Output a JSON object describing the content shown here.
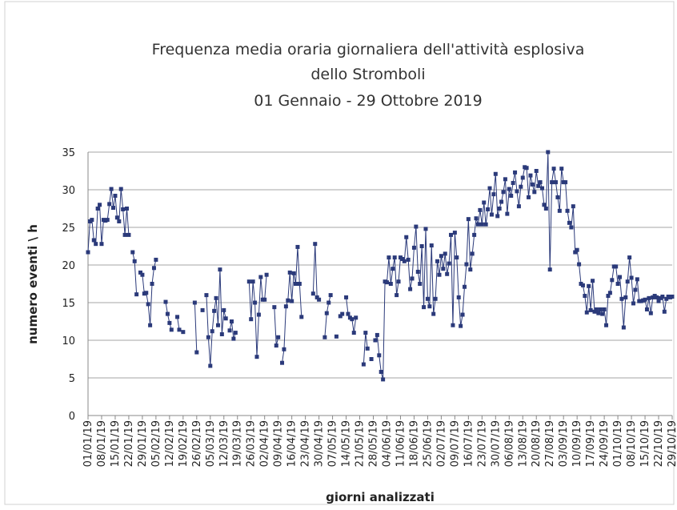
{
  "chart_data": {
    "type": "line",
    "title": [
      "Frequenza media oraria giornaliera dell'attività esplosiva",
      "dello Stromboli",
      "01 Gennaio  - 29 Ottobre 2019"
    ],
    "y_label": "numero eventi \\ h",
    "x_label": "giorni analizzati",
    "color": "#2b3a7a",
    "ylim": [
      0,
      35
    ],
    "yticks": [
      0,
      5,
      10,
      15,
      20,
      25,
      30,
      35
    ],
    "grid": true,
    "categories": [
      "01/01/19",
      null,
      null,
      null,
      null,
      null,
      null,
      "08/01/19",
      null,
      null,
      null,
      null,
      null,
      null,
      "15/01/19",
      null,
      null,
      null,
      null,
      null,
      null,
      "22/01/19",
      null,
      null,
      null,
      null,
      null,
      null,
      "29/01/19",
      null,
      null,
      null,
      null,
      null,
      null,
      "05/02/19",
      null,
      null,
      null,
      null,
      null,
      null,
      "12/02/19",
      null,
      null,
      null,
      null,
      null,
      null,
      "19/02/19",
      null,
      null,
      null,
      null,
      null,
      null,
      "26/02/19",
      null,
      null,
      null,
      null,
      null,
      null,
      "05/03/19",
      null,
      null,
      null,
      null,
      null,
      null,
      "12/03/19",
      null,
      null,
      null,
      null,
      null,
      null,
      "19/03/19",
      null,
      null,
      null,
      null,
      null,
      null,
      "26/03/19",
      null,
      null,
      null,
      null,
      null,
      null,
      "02/04/19",
      null,
      null,
      null,
      null,
      null,
      null,
      "09/04/19",
      null,
      null,
      null,
      null,
      null,
      null,
      "16/04/19",
      null,
      null,
      null,
      null,
      null,
      null,
      "23/04/19",
      null,
      null,
      null,
      null,
      null,
      null,
      "30/04/19",
      null,
      null,
      null,
      null,
      null,
      null,
      "07/05/19",
      null,
      null,
      null,
      null,
      null,
      null,
      "14/05/19",
      null,
      null,
      null,
      null,
      null,
      null,
      "21/05/19",
      null,
      null,
      null,
      null,
      null,
      null,
      "28/05/19",
      null,
      null,
      null,
      null,
      null,
      null,
      "04/06/19",
      null,
      null,
      null,
      null,
      null,
      null,
      "11/06/19",
      null,
      null,
      null,
      null,
      null,
      null,
      "18/06/19",
      null,
      null,
      null,
      null,
      null,
      null,
      "25/06/19",
      null,
      null,
      null,
      null,
      null,
      null,
      "02/07/19",
      null,
      null,
      null,
      null,
      null,
      null,
      "09/07/19",
      null,
      null,
      null,
      null,
      null,
      null,
      "16/07/19",
      null,
      null,
      null,
      null,
      null,
      null,
      "23/07/19",
      null,
      null,
      null,
      null,
      null,
      null,
      "30/07/19",
      null,
      null,
      null,
      null,
      null,
      null,
      "06/08/19",
      null,
      null,
      null,
      null,
      null,
      null,
      "13/08/19",
      null,
      null,
      null,
      null,
      null,
      null,
      "20/08/19",
      null,
      null,
      null,
      null,
      null,
      null,
      "27/08/19",
      null,
      null,
      null,
      null,
      null,
      null,
      "03/09/19",
      null,
      null,
      null,
      null,
      null,
      null,
      "10/09/19",
      null,
      null,
      null,
      null,
      null,
      null,
      "17/09/19",
      null,
      null,
      null,
      null,
      null,
      null,
      "24/09/19",
      null,
      null,
      null,
      null,
      null,
      null,
      "01/10/19",
      null,
      null,
      null,
      null,
      null,
      null,
      "08/10/19",
      null,
      null,
      null,
      null,
      null,
      null,
      "15/10/19",
      null,
      null,
      null,
      null,
      null,
      null,
      "22/10/19",
      null,
      null,
      null,
      null,
      null,
      null,
      "29/10/19"
    ],
    "values": [
      21.7,
      25.8,
      26,
      23.3,
      22.8,
      27.5,
      28,
      22.8,
      26,
      25.9,
      26,
      28.1,
      30.1,
      27.6,
      29.2,
      26.3,
      25.8,
      30.1,
      27.4,
      24,
      27.5,
      24,
      null,
      21.7,
      20.5,
      16.1,
      null,
      19,
      18.7,
      16.2,
      16.3,
      14.8,
      12,
      17.5,
      19.6,
      20.7,
      null,
      null,
      null,
      null,
      15.1,
      13.5,
      12.3,
      11.4,
      null,
      null,
      13.1,
      11.4,
      null,
      11.1,
      null,
      null,
      null,
      null,
      null,
      15,
      8.4,
      null,
      null,
      14,
      null,
      16,
      10.4,
      6.6,
      11.2,
      13.9,
      15.6,
      12,
      19.4,
      10.8,
      14,
      12.9,
      null,
      11.3,
      12.5,
      10.2,
      11,
      null,
      null,
      null,
      null,
      null,
      null,
      17.8,
      12.8,
      17.8,
      15,
      7.8,
      13.4,
      18.4,
      15.4,
      15.4,
      18.7,
      null,
      null,
      null,
      14.4,
      9.3,
      10.4,
      null,
      7,
      8.8,
      14.5,
      15.3,
      19,
      15.2,
      18.9,
      17.5,
      22.4,
      17.5,
      13.1,
      null,
      null,
      null,
      null,
      null,
      16.2,
      22.8,
      15.7,
      15.4,
      null,
      null,
      10.4,
      13.6,
      15,
      16,
      null,
      null,
      10.5,
      null,
      13.2,
      13.5,
      null,
      15.7,
      13.5,
      13,
      12.8,
      11,
      13,
      null,
      null,
      null,
      6.8,
      11,
      8.9,
      null,
      7.5,
      null,
      10,
      10.7,
      8,
      5.8,
      4.8,
      17.8,
      17.7,
      21,
      17.5,
      19.5,
      21,
      16,
      17.8,
      21,
      20.8,
      20.5,
      23.7,
      20.7,
      16.8,
      18.2,
      22.3,
      25.1,
      19.1,
      17.5,
      22.5,
      14.4,
      24.8,
      15.5,
      14.5,
      22.6,
      13.5,
      15.5,
      20.5,
      18.7,
      21.2,
      19.5,
      21.5,
      18.8,
      20.2,
      24,
      12,
      24.3,
      21,
      15.7,
      11.9,
      13.4,
      17.1,
      20.1,
      26.1,
      19.4,
      21.5,
      24,
      26.2,
      25.4,
      27.3,
      25.4,
      28.3,
      25.4,
      27.4,
      30.2,
      26.7,
      29.4,
      32.1,
      26.5,
      27.5,
      28.4,
      29.7,
      31.4,
      26.8,
      30.1,
      29.2,
      30.9,
      32.3,
      29.8,
      27.8,
      30.4,
      31.6,
      33,
      32.9,
      29,
      31.9,
      30.7,
      29.7,
      32.5,
      30.5,
      31,
      30.2,
      28,
      27.5,
      35,
      19.4,
      31,
      32.8,
      31,
      29,
      27.2,
      32.8,
      31,
      31,
      27.2,
      25.6,
      25,
      27.8,
      21.7,
      22,
      20.1,
      17.5,
      17.3,
      15.9,
      13.7,
      17.2,
      14,
      17.9,
      13.8,
      14.1,
      13.6,
      14.1,
      13.5,
      14.1,
      12,
      15.9,
      16.3,
      18,
      19.8,
      19.8,
      17.5,
      18.4,
      15.5,
      11.7,
      15.7,
      17.8,
      21,
      18.3,
      14.9,
      16.7,
      18.1,
      15.2,
      15.2,
      15.3,
      15.4,
      14.1,
      15.6,
      13.6,
      15.7,
      15.9,
      15.7,
      15.2,
      15.6,
      15.8,
      13.8,
      15.5,
      15.8,
      15.7,
      15.8
    ]
  }
}
